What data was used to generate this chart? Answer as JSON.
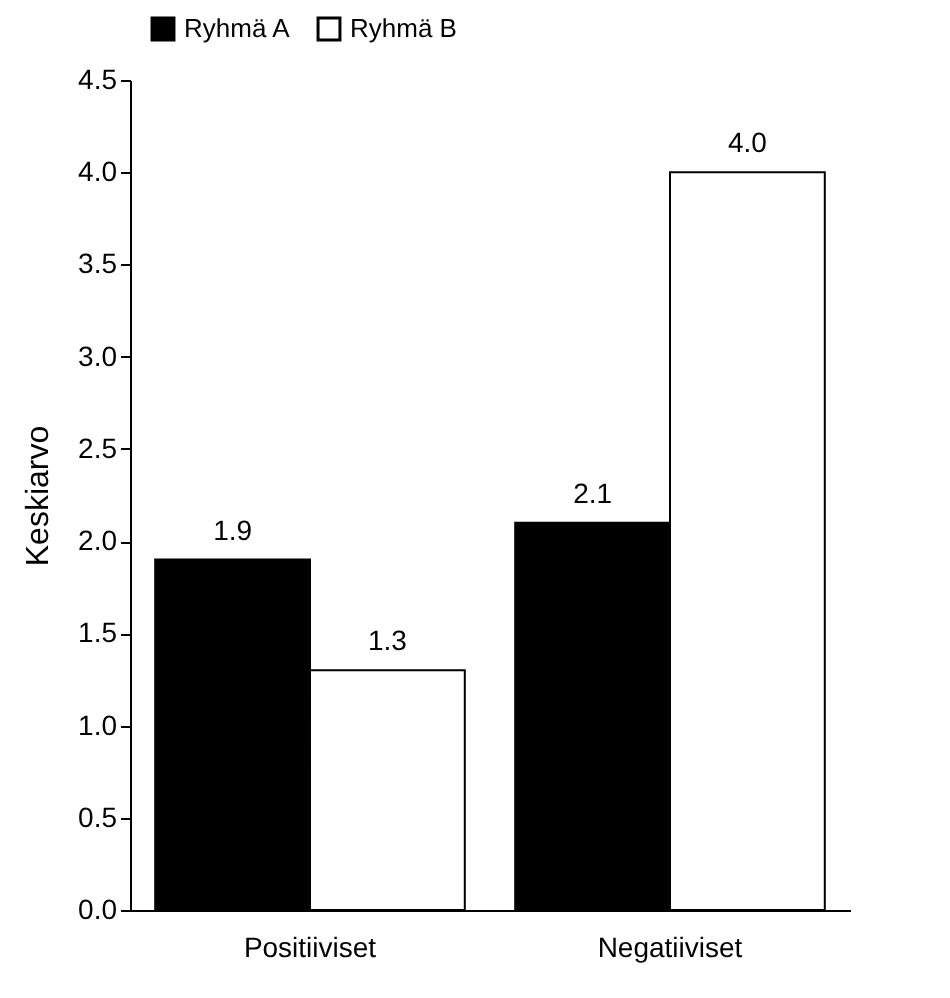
{
  "chart_data": {
    "type": "bar",
    "ylabel": "Keskiarvo",
    "categories": [
      "Positiiviset",
      "Negatiiviset"
    ],
    "series": [
      {
        "name": "Ryhmä A",
        "color": "#000000",
        "values": [
          1.9,
          2.1
        ],
        "value_labels": [
          "1.9",
          "2.1"
        ]
      },
      {
        "name": "Ryhmä B",
        "color": "#ffffff",
        "values": [
          1.3,
          4.0
        ],
        "value_labels": [
          "1.3",
          "4.0"
        ]
      }
    ],
    "ylim": [
      0,
      4.5
    ],
    "yticks": [
      {
        "value": 0,
        "label": "0.0"
      },
      {
        "value": 0.5,
        "label": "0.5"
      },
      {
        "value": 1,
        "label": "1.0"
      },
      {
        "value": 1.5,
        "label": "1.5"
      },
      {
        "value": 2,
        "label": "2.0"
      },
      {
        "value": 2.5,
        "label": "2.5"
      },
      {
        "value": 3,
        "label": "3.0"
      },
      {
        "value": 3.5,
        "label": "3.5"
      },
      {
        "value": 4,
        "label": "4.0"
      },
      {
        "value": 4.5,
        "label": "4.5"
      }
    ],
    "grid": false,
    "legend": "top left"
  }
}
